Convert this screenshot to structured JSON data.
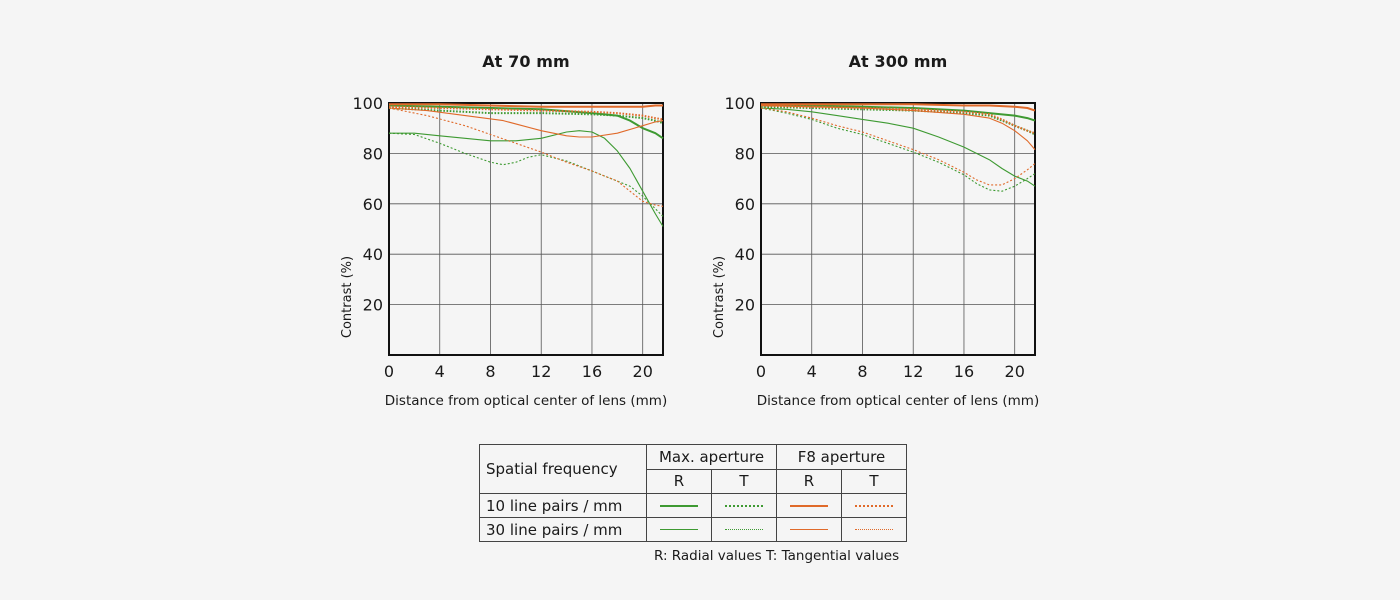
{
  "colors": {
    "green": "#3e9a32",
    "orange": "#e06a2a"
  },
  "chart_data": [
    {
      "type": "line",
      "title": "At 70 mm",
      "xlabel": "Distance from optical center of lens (mm)",
      "ylabel": "Contrast (%)",
      "xlim": [
        0,
        21.6
      ],
      "ylim": [
        0,
        100
      ],
      "xticks": [
        0,
        4,
        8,
        12,
        16,
        20
      ],
      "yticks": [
        20,
        40,
        60,
        80,
        100
      ],
      "grid": true,
      "series": [
        {
          "aperture": "Max. aperture",
          "frequency": "10 line pairs / mm",
          "component": "R",
          "x": [
            0,
            4,
            8,
            12,
            16,
            18,
            19,
            20,
            21,
            21.6
          ],
          "y": [
            99,
            98.5,
            98,
            97.5,
            96,
            95,
            93,
            90,
            88,
            86
          ]
        },
        {
          "aperture": "Max. aperture",
          "frequency": "10 line pairs / mm",
          "component": "T",
          "x": [
            0,
            4,
            8,
            12,
            16,
            18,
            20,
            21,
            21.6
          ],
          "y": [
            98,
            97,
            96,
            96,
            95.5,
            95,
            94,
            93,
            92
          ]
        },
        {
          "aperture": "F8 aperture",
          "frequency": "10 line pairs / mm",
          "component": "R",
          "x": [
            0,
            4,
            8,
            12,
            16,
            18,
            20,
            21,
            21.6
          ],
          "y": [
            99.5,
            99.5,
            99,
            98.5,
            98.5,
            98.5,
            98.5,
            99,
            99
          ]
        },
        {
          "aperture": "F8 aperture",
          "frequency": "10 line pairs / mm",
          "component": "T",
          "x": [
            0,
            4,
            8,
            12,
            16,
            18,
            20,
            21,
            21.6
          ],
          "y": [
            98.5,
            98,
            97.5,
            97,
            96.5,
            96,
            95,
            94,
            93.5
          ]
        },
        {
          "aperture": "Max. aperture",
          "frequency": "30 line pairs / mm",
          "component": "R",
          "x": [
            0,
            2,
            4,
            6,
            8,
            10,
            12,
            14,
            15,
            16,
            17,
            18,
            19,
            20,
            21,
            21.6
          ],
          "y": [
            88,
            88,
            87,
            86,
            85,
            85,
            86,
            88.5,
            89,
            88.5,
            86,
            81,
            74,
            65,
            56,
            51
          ]
        },
        {
          "aperture": "Max. aperture",
          "frequency": "30 line pairs / mm",
          "component": "T",
          "x": [
            0,
            2,
            4,
            6,
            8,
            9,
            10,
            11,
            12,
            14,
            16,
            18,
            19,
            20,
            21,
            21.6
          ],
          "y": [
            88,
            87.5,
            84,
            80,
            76.5,
            75.5,
            76.5,
            78.5,
            79.5,
            77,
            73,
            69,
            67,
            63,
            58,
            55
          ]
        },
        {
          "aperture": "F8 aperture",
          "frequency": "30 line pairs / mm",
          "component": "R",
          "x": [
            0,
            3,
            6,
            9,
            12,
            14,
            15,
            16,
            18,
            20,
            21,
            21.6
          ],
          "y": [
            98,
            97,
            95,
            93,
            89,
            87,
            86.5,
            86.5,
            88,
            91,
            92.5,
            93
          ]
        },
        {
          "aperture": "F8 aperture",
          "frequency": "30 line pairs / mm",
          "component": "T",
          "x": [
            0,
            3,
            6,
            8,
            10,
            12,
            14,
            16,
            18,
            19,
            20,
            21,
            21.6
          ],
          "y": [
            98,
            95,
            91,
            87.5,
            84,
            80.5,
            76.5,
            73,
            69,
            65,
            61,
            59.5,
            59
          ]
        }
      ]
    },
    {
      "type": "line",
      "title": "At 300 mm",
      "xlabel": "Distance from optical center of lens (mm)",
      "ylabel": "Contrast (%)",
      "xlim": [
        0,
        21.6
      ],
      "ylim": [
        0,
        100
      ],
      "xticks": [
        0,
        4,
        8,
        12,
        16,
        20
      ],
      "yticks": [
        20,
        40,
        60,
        80,
        100
      ],
      "grid": true,
      "series": [
        {
          "aperture": "Max. aperture",
          "frequency": "10 line pairs / mm",
          "component": "R",
          "x": [
            0,
            4,
            8,
            12,
            16,
            18,
            20,
            21,
            21.6
          ],
          "y": [
            99,
            99,
            98.5,
            98,
            97,
            96,
            95,
            94,
            93
          ]
        },
        {
          "aperture": "Max. aperture",
          "frequency": "10 line pairs / mm",
          "component": "T",
          "x": [
            0,
            4,
            8,
            12,
            16,
            18,
            19,
            20,
            21,
            21.6
          ],
          "y": [
            98.5,
            98,
            97.5,
            97,
            96,
            95,
            93,
            91,
            89,
            87.5
          ]
        },
        {
          "aperture": "F8 aperture",
          "frequency": "10 line pairs / mm",
          "component": "R",
          "x": [
            0,
            4,
            8,
            12,
            16,
            18,
            20,
            21,
            21.6
          ],
          "y": [
            99.5,
            99.5,
            99.5,
            99.5,
            99,
            99,
            98.5,
            98,
            97
          ]
        },
        {
          "aperture": "F8 aperture",
          "frequency": "10 line pairs / mm",
          "component": "T",
          "x": [
            0,
            4,
            8,
            12,
            16,
            18,
            19,
            20,
            21,
            21.6
          ],
          "y": [
            99,
            98.5,
            98,
            97.5,
            96.5,
            95.5,
            93.5,
            91,
            89,
            88
          ]
        },
        {
          "aperture": "Max. aperture",
          "frequency": "30 line pairs / mm",
          "component": "R",
          "x": [
            0,
            2,
            4,
            6,
            8,
            10,
            12,
            14,
            16,
            18,
            19,
            20,
            21,
            21.6
          ],
          "y": [
            98,
            97.5,
            96.5,
            95,
            93.5,
            92,
            90,
            86.5,
            82.5,
            77.5,
            74,
            71,
            69,
            67
          ]
        },
        {
          "aperture": "Max. aperture",
          "frequency": "30 line pairs / mm",
          "component": "T",
          "x": [
            0,
            2,
            4,
            6,
            8,
            10,
            12,
            14,
            16,
            17,
            18,
            19,
            20,
            21,
            21.6
          ],
          "y": [
            98,
            96,
            93.5,
            90,
            87.5,
            84,
            80.5,
            76.5,
            71.5,
            68,
            65.5,
            65,
            67,
            70,
            72
          ]
        },
        {
          "aperture": "F8 aperture",
          "frequency": "30 line pairs / mm",
          "component": "R",
          "x": [
            0,
            4,
            8,
            12,
            16,
            18,
            19,
            20,
            21,
            21.6
          ],
          "y": [
            99,
            98.5,
            98,
            97,
            95.5,
            94,
            92,
            89,
            85,
            81.5
          ]
        },
        {
          "aperture": "F8 aperture",
          "frequency": "30 line pairs / mm",
          "component": "T",
          "x": [
            0,
            2,
            4,
            6,
            8,
            10,
            12,
            14,
            16,
            17,
            18,
            19,
            20,
            21,
            21.6
          ],
          "y": [
            98,
            96.5,
            94,
            91,
            88.5,
            85,
            81.5,
            77.5,
            72.5,
            69.5,
            67.5,
            67.5,
            70,
            73.5,
            76
          ]
        }
      ]
    }
  ],
  "legend": {
    "spatial_frequency_label": "Spatial frequency",
    "max_aperture_label": "Max. aperture",
    "f8_aperture_label": "F8 aperture",
    "r_label": "R",
    "t_label": "T",
    "row_10": "10 line pairs / mm",
    "row_30": "30 line pairs / mm",
    "note": "R: Radial values  T: Tangential values"
  }
}
